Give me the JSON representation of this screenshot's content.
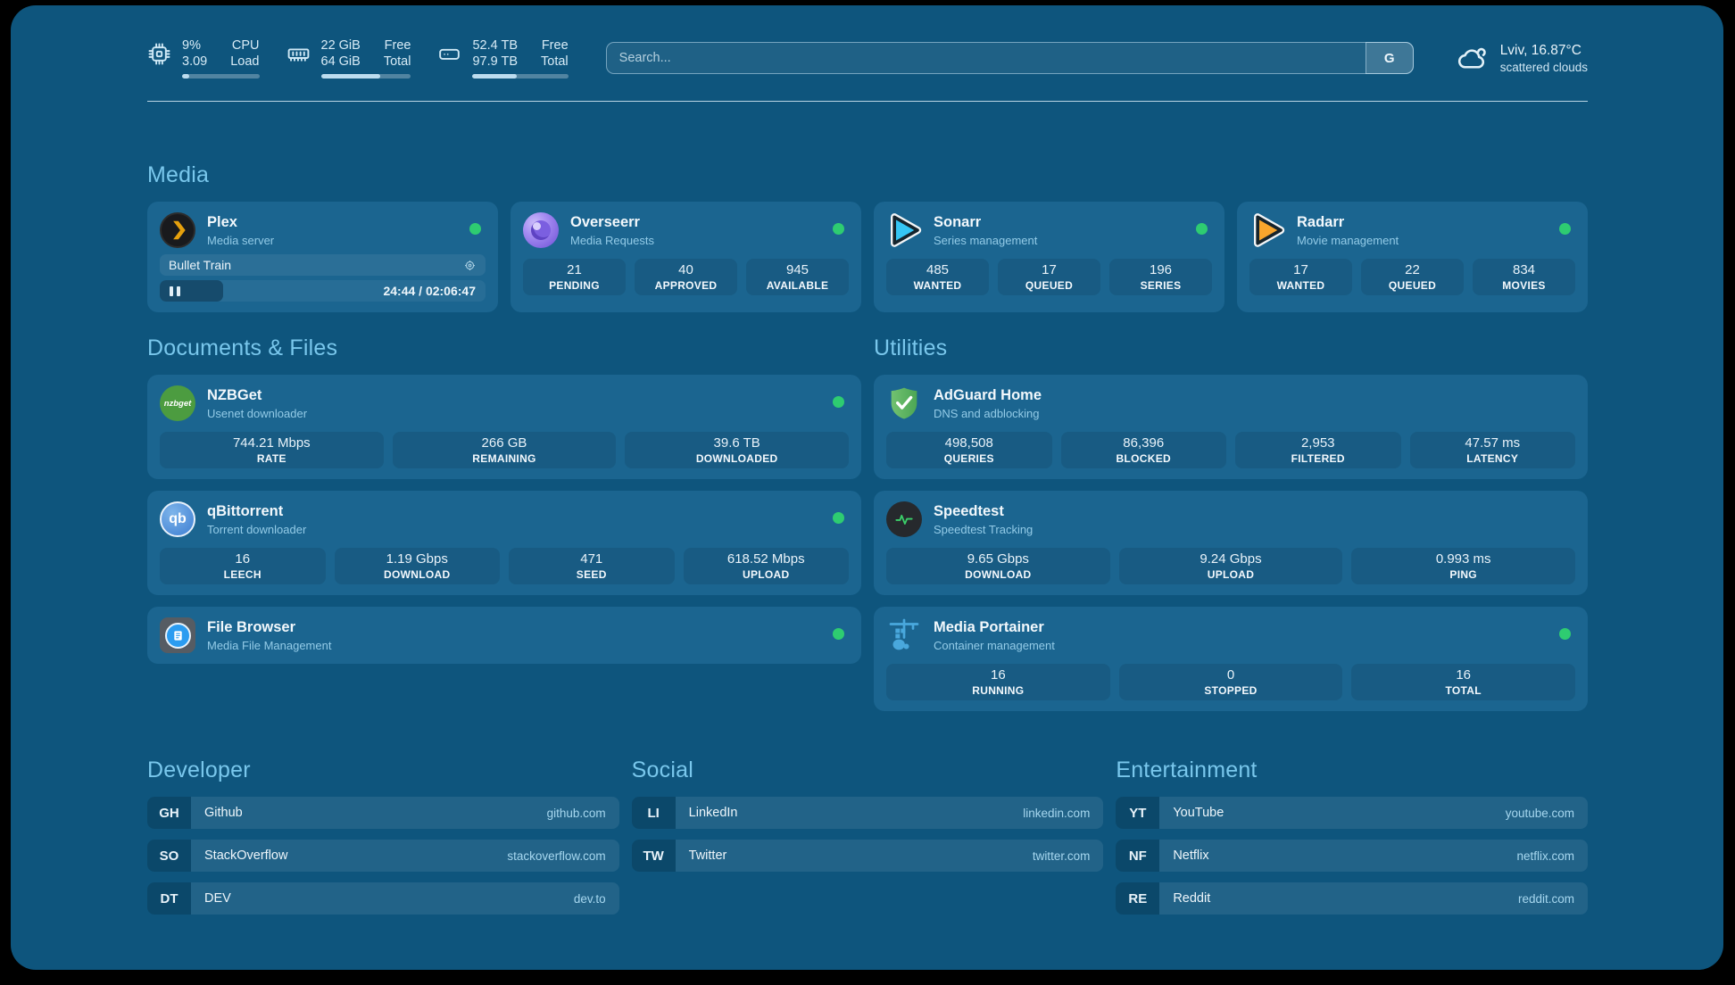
{
  "header": {
    "metrics": [
      {
        "id": "cpu",
        "rows": [
          {
            "value": "9%",
            "label": "CPU"
          },
          {
            "value": "3.09",
            "label": "Load"
          }
        ],
        "progress_pct": 9
      },
      {
        "id": "memory",
        "rows": [
          {
            "value": "22 GiB",
            "label": "Free"
          },
          {
            "value": "64 GiB",
            "label": "Total"
          }
        ],
        "progress_pct": 66
      },
      {
        "id": "storage",
        "rows": [
          {
            "value": "52.4 TB",
            "label": "Free"
          },
          {
            "value": "97.9 TB",
            "label": "Total"
          }
        ],
        "progress_pct": 46
      }
    ],
    "search": {
      "placeholder": "Search...",
      "engine_button": "G"
    },
    "weather": {
      "location": "Lviv, 16.87°C",
      "condition": "scattered clouds"
    }
  },
  "sections": {
    "media": {
      "title": "Media",
      "plex": {
        "name": "Plex",
        "subtitle": "Media server",
        "now_playing": "Bullet Train",
        "time": "24:44 / 02:06:47",
        "progress_pct": 19.5
      },
      "overseerr": {
        "name": "Overseerr",
        "subtitle": "Media Requests",
        "stats": [
          {
            "value": "21",
            "label": "PENDING"
          },
          {
            "value": "40",
            "label": "APPROVED"
          },
          {
            "value": "945",
            "label": "AVAILABLE"
          }
        ]
      },
      "sonarr": {
        "name": "Sonarr",
        "subtitle": "Series management",
        "stats": [
          {
            "value": "485",
            "label": "WANTED"
          },
          {
            "value": "17",
            "label": "QUEUED"
          },
          {
            "value": "196",
            "label": "SERIES"
          }
        ]
      },
      "radarr": {
        "name": "Radarr",
        "subtitle": "Movie management",
        "stats": [
          {
            "value": "17",
            "label": "WANTED"
          },
          {
            "value": "22",
            "label": "QUEUED"
          },
          {
            "value": "834",
            "label": "MOVIES"
          }
        ]
      }
    },
    "documents": {
      "title": "Documents & Files",
      "nzbget": {
        "name": "NZBGet",
        "subtitle": "Usenet downloader",
        "icon_text": "nzbget",
        "stats": [
          {
            "value": "744.21 Mbps",
            "label": "RATE"
          },
          {
            "value": "266 GB",
            "label": "REMAINING"
          },
          {
            "value": "39.6 TB",
            "label": "DOWNLOADED"
          }
        ]
      },
      "qbittorrent": {
        "name": "qBittorrent",
        "subtitle": "Torrent downloader",
        "icon_text": "qb",
        "stats": [
          {
            "value": "16",
            "label": "LEECH"
          },
          {
            "value": "1.19 Gbps",
            "label": "DOWNLOAD"
          },
          {
            "value": "471",
            "label": "SEED"
          },
          {
            "value": "618.52 Mbps",
            "label": "UPLOAD"
          }
        ]
      },
      "filebrowser": {
        "name": "File Browser",
        "subtitle": "Media File Management"
      }
    },
    "utilities": {
      "title": "Utilities",
      "adguard": {
        "name": "AdGuard Home",
        "subtitle": "DNS and adblocking",
        "stats": [
          {
            "value": "498,508",
            "label": "QUERIES"
          },
          {
            "value": "86,396",
            "label": "BLOCKED"
          },
          {
            "value": "2,953",
            "label": "FILTERED"
          },
          {
            "value": "47.57 ms",
            "label": "LATENCY"
          }
        ]
      },
      "speedtest": {
        "name": "Speedtest",
        "subtitle": "Speedtest Tracking",
        "stats": [
          {
            "value": "9.65 Gbps",
            "label": "DOWNLOAD"
          },
          {
            "value": "9.24 Gbps",
            "label": "UPLOAD"
          },
          {
            "value": "0.993 ms",
            "label": "PING"
          }
        ]
      },
      "portainer": {
        "name": "Media Portainer",
        "subtitle": "Container management",
        "stats": [
          {
            "value": "16",
            "label": "RUNNING"
          },
          {
            "value": "0",
            "label": "STOPPED"
          },
          {
            "value": "16",
            "label": "TOTAL"
          }
        ]
      }
    },
    "links": {
      "developer": {
        "title": "Developer",
        "items": [
          {
            "abbr": "GH",
            "name": "Github",
            "url": "github.com"
          },
          {
            "abbr": "SO",
            "name": "StackOverflow",
            "url": "stackoverflow.com"
          },
          {
            "abbr": "DT",
            "name": "DEV",
            "url": "dev.to"
          }
        ]
      },
      "social": {
        "title": "Social",
        "items": [
          {
            "abbr": "LI",
            "name": "LinkedIn",
            "url": "linkedin.com"
          },
          {
            "abbr": "TW",
            "name": "Twitter",
            "url": "twitter.com"
          }
        ]
      },
      "entertainment": {
        "title": "Entertainment",
        "items": [
          {
            "abbr": "YT",
            "name": "YouTube",
            "url": "youtube.com"
          },
          {
            "abbr": "NF",
            "name": "Netflix",
            "url": "netflix.com"
          },
          {
            "abbr": "RE",
            "name": "Reddit",
            "url": "reddit.com"
          }
        ]
      }
    }
  },
  "colors": {
    "status_online": "#2ecc71",
    "heading": "#79c7ec",
    "background": "#0e557d"
  }
}
